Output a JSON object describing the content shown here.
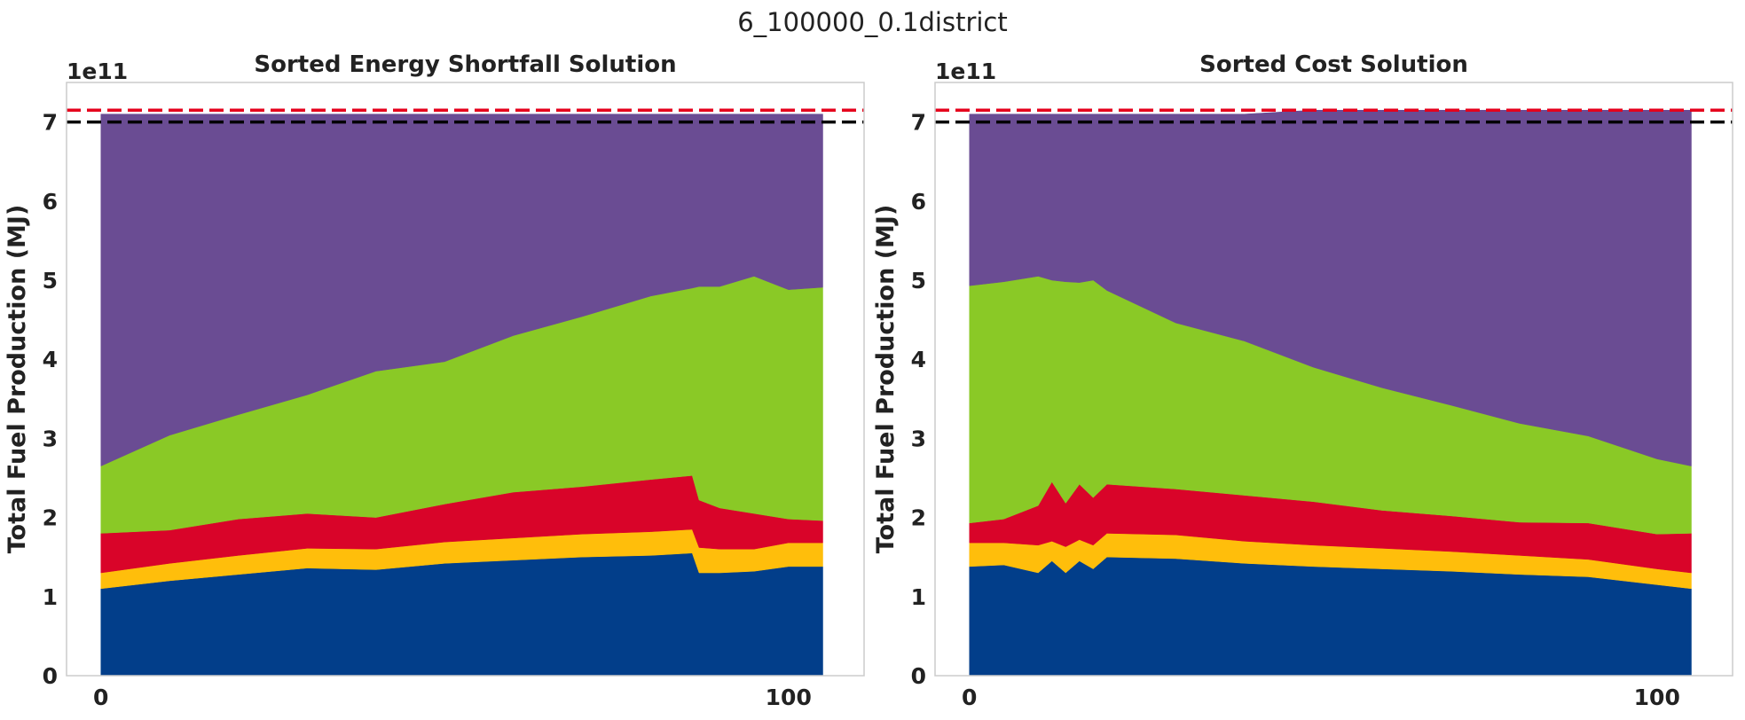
{
  "suptitle": "6_100000_0.1district",
  "colors": {
    "layers": [
      "#023e8a",
      "#ffbe0b",
      "#d90429",
      "#8ac926",
      "#6a4c93"
    ],
    "ref_red": "#e5001c",
    "ref_black": "#000000",
    "frame": "#cccccc"
  },
  "chart_data": [
    {
      "type": "area",
      "stacked": true,
      "title": "Sorted Energy Shortfall Solution",
      "ylabel": "Total Fuel Production (MJ)",
      "y_offset_label": "1e11",
      "xlim": [
        -5,
        111
      ],
      "ylim": [
        0,
        7.5
      ],
      "xticks": [
        0,
        100
      ],
      "yticks": [
        0,
        1,
        2,
        3,
        4,
        5,
        6,
        7
      ],
      "grid": false,
      "ref_lines": [
        7.15,
        7.0
      ],
      "x": [
        0,
        10,
        20,
        30,
        40,
        50,
        60,
        70,
        80,
        86,
        87,
        90,
        95,
        100,
        105
      ],
      "series": [
        {
          "values": [
            1.1,
            1.2,
            1.28,
            1.36,
            1.34,
            1.42,
            1.46,
            1.5,
            1.52,
            1.55,
            1.3,
            1.3,
            1.32,
            1.38,
            1.38
          ]
        },
        {
          "values": [
            0.2,
            0.22,
            0.24,
            0.25,
            0.26,
            0.27,
            0.28,
            0.29,
            0.3,
            0.3,
            0.32,
            0.3,
            0.28,
            0.3,
            0.3
          ]
        },
        {
          "values": [
            0.5,
            0.42,
            0.46,
            0.44,
            0.4,
            0.48,
            0.58,
            0.6,
            0.66,
            0.68,
            0.6,
            0.52,
            0.45,
            0.3,
            0.28
          ]
        },
        {
          "values": [
            0.85,
            1.2,
            1.32,
            1.5,
            1.85,
            1.8,
            1.98,
            2.15,
            2.32,
            2.37,
            2.7,
            2.8,
            3.0,
            2.9,
            2.95
          ]
        },
        {
          "values": [
            4.45,
            4.06,
            3.8,
            3.55,
            3.25,
            3.13,
            2.8,
            2.56,
            2.3,
            2.2,
            2.18,
            2.18,
            2.05,
            2.22,
            2.19
          ]
        }
      ]
    },
    {
      "type": "area",
      "stacked": true,
      "title": "Sorted Cost Solution",
      "ylabel": "Total Fuel Production (MJ)",
      "y_offset_label": "1e11",
      "xlim": [
        -5,
        111
      ],
      "ylim": [
        0,
        7.5
      ],
      "xticks": [
        0,
        100
      ],
      "yticks": [
        0,
        1,
        2,
        3,
        4,
        5,
        6,
        7
      ],
      "grid": false,
      "ref_lines": [
        7.15,
        7.0
      ],
      "x": [
        0,
        5,
        10,
        12,
        14,
        16,
        18,
        20,
        30,
        40,
        50,
        60,
        70,
        80,
        90,
        100,
        105
      ],
      "series": [
        {
          "values": [
            1.38,
            1.4,
            1.3,
            1.45,
            1.3,
            1.45,
            1.35,
            1.5,
            1.48,
            1.42,
            1.38,
            1.35,
            1.32,
            1.28,
            1.25,
            1.15,
            1.1
          ]
        },
        {
          "values": [
            0.3,
            0.28,
            0.35,
            0.25,
            0.33,
            0.27,
            0.3,
            0.3,
            0.3,
            0.28,
            0.27,
            0.26,
            0.25,
            0.24,
            0.22,
            0.2,
            0.2
          ]
        },
        {
          "values": [
            0.25,
            0.3,
            0.5,
            0.75,
            0.55,
            0.7,
            0.6,
            0.62,
            0.58,
            0.58,
            0.55,
            0.48,
            0.45,
            0.42,
            0.46,
            0.44,
            0.5
          ]
        },
        {
          "values": [
            3.0,
            3.0,
            2.9,
            2.55,
            2.8,
            2.55,
            2.75,
            2.45,
            2.1,
            1.95,
            1.7,
            1.55,
            1.4,
            1.25,
            1.1,
            0.95,
            0.85
          ]
        },
        {
          "values": [
            2.17,
            2.12,
            2.05,
            2.1,
            2.12,
            2.13,
            2.1,
            2.23,
            2.64,
            2.87,
            3.25,
            3.51,
            3.73,
            3.96,
            4.12,
            4.41,
            4.5
          ]
        }
      ]
    }
  ]
}
